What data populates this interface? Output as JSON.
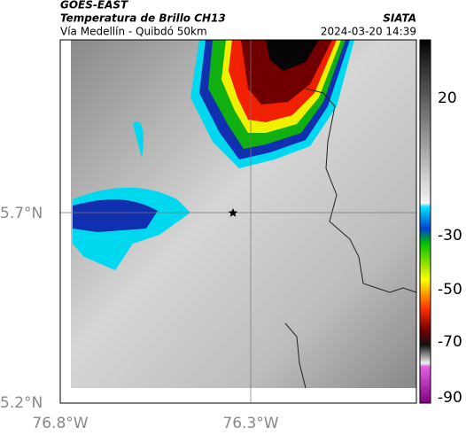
{
  "header": {
    "title": "GOES-EAST",
    "subtitle": "Temperatura de Brillo CH13",
    "location": "Vía Medellín - Quibdó 50km",
    "source": "SIATA",
    "datetime": "2024-03-20 14:39"
  },
  "map": {
    "lat_labels": [
      "5.7°N",
      "5.2°N"
    ],
    "lon_labels": [
      "76.8°W",
      "76.3°W"
    ]
  },
  "colorbar": {
    "ticks": [
      20,
      -30,
      -50,
      -70,
      -90
    ]
  }
}
